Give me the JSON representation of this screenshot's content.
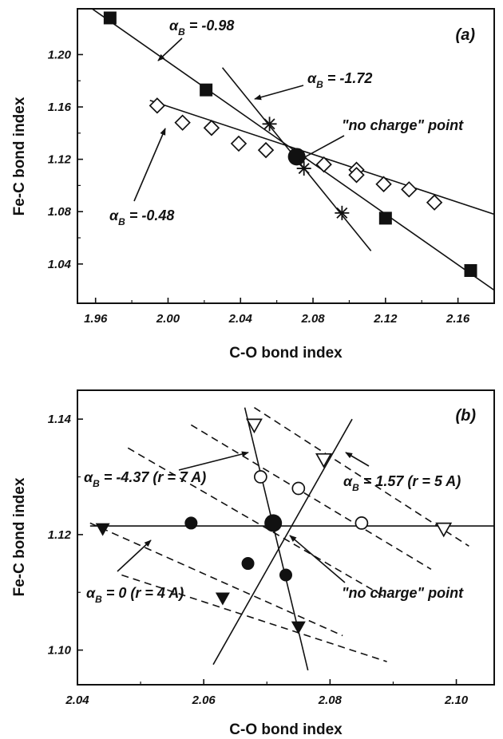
{
  "chart_data": [
    {
      "type": "scatter",
      "panel_label": "(a)",
      "xlabel": "C-O bond index",
      "ylabel": "Fe-C bond index",
      "xlim": [
        1.95,
        2.18
      ],
      "ylim": [
        1.01,
        1.235
      ],
      "xticks": [
        1.96,
        2.0,
        2.04,
        2.08,
        2.12,
        2.16
      ],
      "xtick_labels": [
        "1.96",
        "2.00",
        "2.04",
        "2.08",
        "2.12",
        "2.16"
      ],
      "yticks": [
        1.04,
        1.08,
        1.12,
        1.16,
        1.2
      ],
      "ytick_labels": [
        "1.04",
        "1.08",
        "1.12",
        "1.16",
        "1.20"
      ],
      "series": [
        {
          "marker": "square-filled",
          "x": [
            1.968,
            2.021,
            2.12,
            2.167
          ],
          "y": [
            1.228,
            1.173,
            1.075,
            1.035
          ]
        },
        {
          "marker": "diamond-open",
          "x": [
            1.994,
            2.008,
            2.024,
            2.039,
            2.054,
            2.086,
            2.104,
            2.104,
            2.119,
            2.133,
            2.147
          ],
          "y": [
            1.161,
            1.148,
            1.144,
            1.132,
            1.127,
            1.116,
            1.112,
            1.108,
            1.101,
            1.097,
            1.087
          ]
        },
        {
          "marker": "asterisk",
          "x": [
            2.056,
            2.075,
            2.096
          ],
          "y": [
            1.147,
            1.113,
            1.079
          ]
        },
        {
          "marker": "circle-filled-large",
          "x": [
            2.071
          ],
          "y": [
            1.122
          ]
        }
      ],
      "lines": [
        {
          "x": [
            1.955,
            2.18
          ],
          "y": [
            1.238,
            1.02
          ]
        },
        {
          "x": [
            1.99,
            2.18
          ],
          "y": [
            1.165,
            1.078
          ]
        },
        {
          "x": [
            2.03,
            2.112
          ],
          "y": [
            1.19,
            1.05
          ]
        }
      ],
      "annotations": [
        {
          "prefix": "α",
          "sub": "B",
          "suffix": " = -0.98"
        },
        {
          "prefix": "α",
          "sub": "B",
          "suffix": " = -1.72"
        },
        {
          "prefix": "α",
          "sub": "B",
          "suffix": " = -0.48"
        },
        {
          "text": "\"no charge\" point"
        }
      ]
    },
    {
      "type": "scatter",
      "panel_label": "(b)",
      "xlabel": "C-O bond index",
      "ylabel": "Fe-C bond index",
      "xlim": [
        2.04,
        2.106
      ],
      "ylim": [
        1.094,
        1.145
      ],
      "xticks": [
        2.04,
        2.06,
        2.08,
        2.1
      ],
      "xtick_labels": [
        "2.04",
        "2.06",
        "2.08",
        "2.10"
      ],
      "yticks": [
        1.1,
        1.12,
        1.14
      ],
      "ytick_labels": [
        "1.10",
        "1.12",
        "1.14"
      ],
      "series": [
        {
          "marker": "triangle-down-open",
          "x": [
            2.068,
            2.079,
            2.098
          ],
          "y": [
            1.139,
            1.133,
            1.121
          ]
        },
        {
          "marker": "circle-open",
          "x": [
            2.069,
            2.075,
            2.085
          ],
          "y": [
            1.13,
            1.128,
            1.122
          ]
        },
        {
          "marker": "circle-filled",
          "x": [
            2.058,
            2.067,
            2.073
          ],
          "y": [
            1.122,
            1.115,
            1.113
          ]
        },
        {
          "marker": "triangle-down-filled",
          "x": [
            2.044,
            2.063,
            2.075
          ],
          "y": [
            1.121,
            1.109,
            1.104
          ]
        },
        {
          "marker": "circle-filled-large",
          "x": [
            2.071
          ],
          "y": [
            1.122
          ]
        }
      ],
      "lines": [
        {
          "style": "solid",
          "x": [
            2.042,
            2.106
          ],
          "y": [
            1.1215,
            1.1215
          ]
        },
        {
          "style": "solid",
          "x": [
            2.0665,
            2.0765
          ],
          "y": [
            1.142,
            1.0965
          ]
        },
        {
          "style": "solid",
          "x": [
            2.0615,
            2.0835
          ],
          "y": [
            1.0975,
            1.14
          ]
        },
        {
          "style": "dashed",
          "x": [
            2.068,
            2.102
          ],
          "y": [
            1.142,
            1.118
          ]
        },
        {
          "style": "dashed",
          "x": [
            2.058,
            2.096
          ],
          "y": [
            1.139,
            1.114
          ]
        },
        {
          "style": "dashed",
          "x": [
            2.048,
            2.089
          ],
          "y": [
            1.135,
            1.109
          ]
        },
        {
          "style": "dashed",
          "x": [
            2.042,
            2.082
          ],
          "y": [
            1.122,
            1.1025
          ]
        },
        {
          "style": "dashed",
          "x": [
            2.047,
            2.089
          ],
          "y": [
            1.113,
            1.098
          ]
        }
      ],
      "annotations": [
        {
          "prefix": "α",
          "sub": "B",
          "suffix": " = -4.37 (r = 7 A)"
        },
        {
          "prefix": "α",
          "sub": "B",
          "suffix": " = 1.57 (r = 5 A)"
        },
        {
          "prefix": "α",
          "sub": "B",
          "suffix": " = 0 (r = 4 A)"
        },
        {
          "text": "\"no charge\" point"
        }
      ]
    }
  ]
}
